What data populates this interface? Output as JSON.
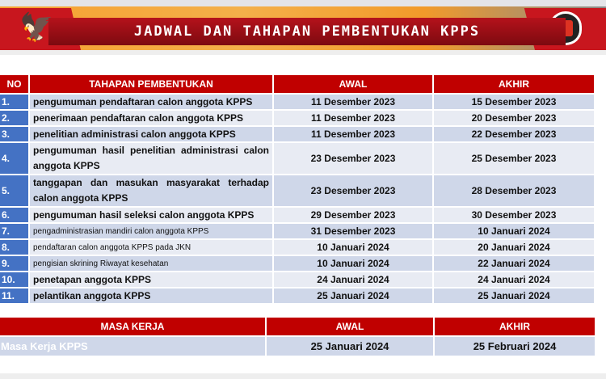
{
  "header": {
    "title": "JADWAL DAN TAHAPAN PEMBENTUKAN KPPS"
  },
  "table": {
    "columns": [
      "NO",
      "TAHAPAN PEMBENTUKAN",
      "AWAL",
      "AKHIR"
    ],
    "rows": [
      {
        "no": "1.",
        "tahapan": "pengumuman pendaftaran calon anggota KPPS",
        "awal": "11 Desember 2023",
        "akhir": "15 Desember 2023"
      },
      {
        "no": "2.",
        "tahapan": "penerimaan pendaftaran calon anggota KPPS",
        "awal": "11 Desember 2023",
        "akhir": "20 Desember 2023"
      },
      {
        "no": "3.",
        "tahapan": "penelitian administrasi calon anggota KPPS",
        "awal": "11 Desember 2023",
        "akhir": "22 Desember 2023"
      },
      {
        "no": "4.",
        "tahapan": "pengumuman hasil penelitian administrasi calon anggota KPPS",
        "awal": "23 Desember 2023",
        "akhir": "25 Desember 2023"
      },
      {
        "no": "5.",
        "tahapan": "tanggapan dan masukan masyarakat terhadap calon anggota KPPS",
        "awal": "23 Desember 2023",
        "akhir": "28 Desember 2023"
      },
      {
        "no": "6.",
        "tahapan": "pengumuman hasil seleksi calon anggota KPPS",
        "awal": "29 Desember 2023",
        "akhir": "30 Desember 2023"
      },
      {
        "no": "7.",
        "tahapan": "pengadministrasian mandiri calon anggota KPPS",
        "awal": "31 Desember 2023",
        "akhir": "10 Januari 2024"
      },
      {
        "no": "8.",
        "tahapan": "pendaftaran calon anggota KPPS pada JKN",
        "awal": "10 Januari 2024",
        "akhir": "20 Januari 2024"
      },
      {
        "no": "9.",
        "tahapan": "pengisian skrining Riwayat kesehatan",
        "awal": "10 Januari 2024",
        "akhir": "22 Januari 2024"
      },
      {
        "no": "10.",
        "tahapan": "penetapan anggota KPPS",
        "awal": "24 Januari 2024",
        "akhir": "24 Januari 2024"
      },
      {
        "no": "11.",
        "tahapan": "pelantikan anggota KPPS",
        "awal": "25 Januari 2024",
        "akhir": "25 Januari 2024"
      }
    ]
  },
  "masa_kerja": {
    "columns": [
      "MASA KERJA",
      "AWAL",
      "AKHIR"
    ],
    "row": {
      "label": "Masa Kerja KPPS",
      "awal": "25 Januari 2024",
      "akhir": "25 Februari 2024"
    }
  }
}
